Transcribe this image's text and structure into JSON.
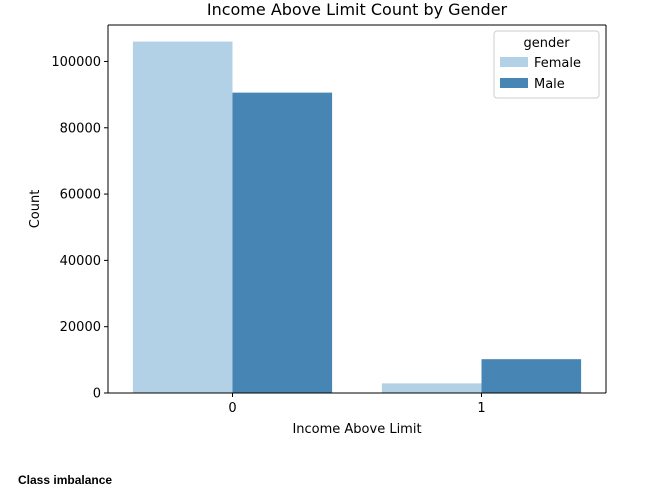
{
  "chart_data": {
    "type": "bar",
    "title": "Income Above Limit Count by Gender",
    "xlabel": "Income Above Limit",
    "ylabel": "Count",
    "categories": [
      "0",
      "1"
    ],
    "series": [
      {
        "name": " Female",
        "values": [
          106000,
          2900
        ],
        "color": "#b3d1e6"
      },
      {
        "name": " Male",
        "values": [
          90600,
          10200
        ],
        "color": "#4785b5"
      }
    ],
    "ylim": [
      0,
      111000
    ],
    "yticks": [
      0,
      20000,
      40000,
      60000,
      80000,
      100000
    ],
    "legend": {
      "title": "gender",
      "placement": "top-right"
    },
    "grid": false
  },
  "caption": "Class imbalance"
}
